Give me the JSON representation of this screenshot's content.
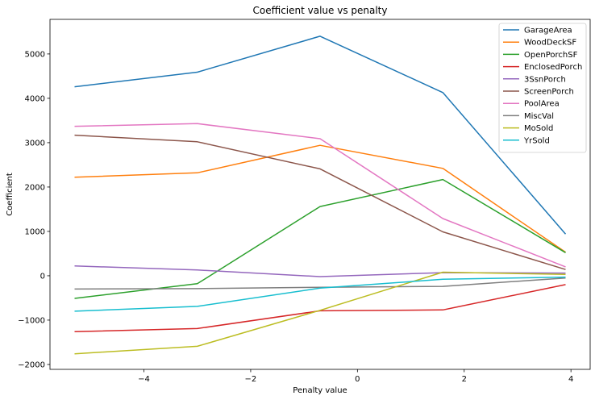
{
  "chart_data": {
    "type": "line",
    "title": "Coefficient value vs penalty",
    "xlabel": "Penalty value",
    "ylabel": "Coefficient",
    "xlim": [
      -5.76,
      4.36
    ],
    "ylim": [
      -2110,
      5780
    ],
    "xticks": [
      -4,
      -2,
      0,
      2,
      4
    ],
    "yticks": [
      -2000,
      -1000,
      0,
      1000,
      2000,
      3000,
      4000,
      5000
    ],
    "xtick_labels": [
      "−4",
      "−2",
      "0",
      "2",
      "4"
    ],
    "ytick_labels": [
      "−2000",
      "−1000",
      "0",
      "1000",
      "2000",
      "3000",
      "4000",
      "5000"
    ],
    "grid": false,
    "legend_position": "top-right",
    "x": [
      -5.3,
      -3.0,
      -0.7,
      1.6,
      3.9
    ],
    "series": [
      {
        "name": "GarageArea",
        "color": "#1f77b4",
        "values": [
          4260,
          4590,
          5400,
          4130,
          940
        ]
      },
      {
        "name": "WoodDeckSF",
        "color": "#ff7f0e",
        "values": [
          2220,
          2320,
          2940,
          2420,
          530
        ]
      },
      {
        "name": "OpenPorchSF",
        "color": "#2ca02c",
        "values": [
          -510,
          -180,
          1560,
          2170,
          520
        ]
      },
      {
        "name": "EnclosedPorch",
        "color": "#d62728",
        "values": [
          -1260,
          -1190,
          -790,
          -770,
          -200
        ]
      },
      {
        "name": "3SsnPorch",
        "color": "#9467bd",
        "values": [
          220,
          130,
          -20,
          70,
          60
        ]
      },
      {
        "name": "ScreenPorch",
        "color": "#8c564b",
        "values": [
          3170,
          3020,
          2410,
          990,
          140
        ]
      },
      {
        "name": "PoolArea",
        "color": "#e377c2",
        "values": [
          3370,
          3430,
          3090,
          1290,
          200
        ]
      },
      {
        "name": "MiscVal",
        "color": "#7f7f7f",
        "values": [
          -300,
          -290,
          -260,
          -240,
          -50
        ]
      },
      {
        "name": "MoSold",
        "color": "#bcbd22",
        "values": [
          -1760,
          -1590,
          -780,
          80,
          30
        ]
      },
      {
        "name": "YrSold",
        "color": "#17becf",
        "values": [
          -800,
          -690,
          -280,
          -80,
          -30
        ]
      }
    ]
  }
}
